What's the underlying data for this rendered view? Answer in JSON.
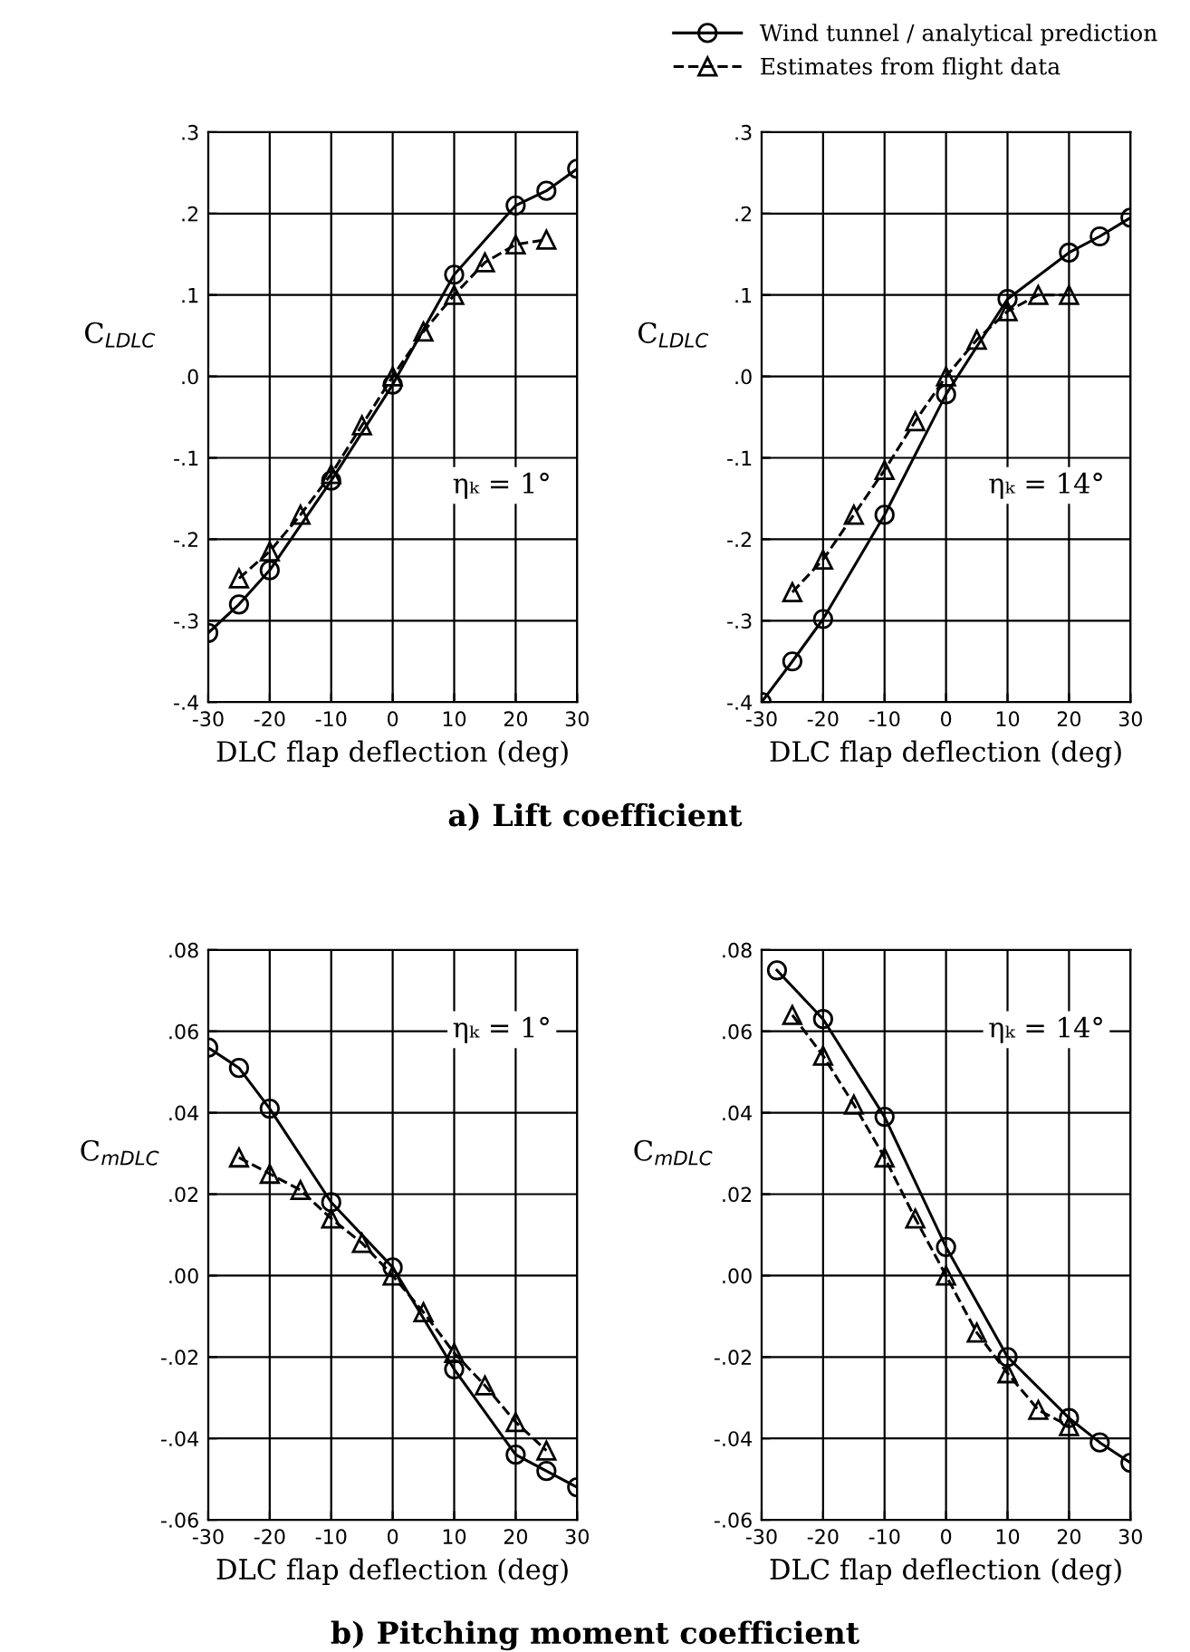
{
  "chart_data": [
    {
      "type": "line",
      "ylabel": "C$_{LDLC}$",
      "xlabel": "DLC flap deflection (deg)",
      "legend": "top right",
      "grid": true,
      "annotations": [
        "ηₖ = 1°",
        "a) Lift coefficient"
      ],
      "xlim": [
        -30,
        30
      ],
      "xticks": [
        -30,
        -20,
        -10,
        0,
        10,
        20,
        30
      ],
      "ylim": [
        -0.4,
        0.3
      ],
      "yticks": [
        {
          "value": -0.4,
          "label": "-.4"
        },
        {
          "value": -0.3,
          "label": "-.3"
        },
        {
          "value": -0.2,
          "label": "-.2"
        },
        {
          "value": -0.1,
          "label": "-.1"
        },
        {
          "value": 0,
          "label": ".0"
        },
        {
          "value": 0.1,
          "label": ".1"
        },
        {
          "value": 0.2,
          "label": ".2"
        },
        {
          "value": 0.3,
          "label": ".3"
        }
      ],
      "series": [
        {
          "name": "Wind tunnel / analytical prediction",
          "color": "#000000",
          "marker": "circle",
          "line_style": "solid",
          "x": [
            -30,
            -25,
            -20,
            -10,
            0,
            10,
            20,
            25,
            30
          ],
          "values": [
            -0.315,
            -0.28,
            -0.238,
            -0.128,
            -0.01,
            0.125,
            0.21,
            0.228,
            0.255
          ]
        },
        {
          "name": "Estimates from flight data",
          "color": "#000000",
          "marker": "triangle",
          "line_style": "dashed",
          "x": [
            -25,
            -20,
            -15,
            -10,
            -5,
            0,
            5,
            10,
            15,
            20,
            25
          ],
          "values": [
            -0.248,
            -0.215,
            -0.17,
            -0.12,
            -0.06,
            0.0,
            0.055,
            0.1,
            0.14,
            0.162,
            0.168
          ]
        }
      ]
    },
    {
      "type": "line",
      "ylabel": "C$_{LDLC}$",
      "xlabel": "DLC flap deflection (deg)",
      "grid": true,
      "annotations": [
        "ηₖ = 14°"
      ],
      "xlim": [
        -30,
        30
      ],
      "xticks": [
        -30,
        -20,
        -10,
        0,
        10,
        20,
        30
      ],
      "ylim": [
        -0.4,
        0.3
      ],
      "yticks": [
        {
          "value": -0.4,
          "label": "-.4"
        },
        {
          "value": -0.3,
          "label": "-.3"
        },
        {
          "value": -0.2,
          "label": "-.2"
        },
        {
          "value": -0.1,
          "label": "-.1"
        },
        {
          "value": 0,
          "label": ".0"
        },
        {
          "value": 0.1,
          "label": ".1"
        },
        {
          "value": 0.2,
          "label": ".2"
        },
        {
          "value": 0.3,
          "label": ".3"
        }
      ],
      "series": [
        {
          "color": "#000000",
          "marker": "circle",
          "line_style": "solid",
          "x": [
            -30,
            -25,
            -20,
            -10,
            0,
            10,
            20,
            25,
            30
          ],
          "values": [
            -0.4,
            -0.35,
            -0.298,
            -0.17,
            -0.022,
            0.095,
            0.152,
            0.172,
            0.195
          ]
        },
        {
          "color": "#000000",
          "marker": "triangle",
          "line_style": "dashed",
          "x": [
            -25,
            -20,
            -15,
            -10,
            -5,
            0,
            5,
            10,
            15,
            20
          ],
          "values": [
            -0.265,
            -0.225,
            -0.17,
            -0.115,
            -0.055,
            0.0,
            0.045,
            0.08,
            0.1,
            0.1
          ]
        }
      ]
    },
    {
      "type": "line",
      "ylabel": "C$_{mDLC}$",
      "xlabel": "DLC flap deflection (deg)",
      "grid": true,
      "annotations": [
        "ηₖ = 1°",
        "b) Pitching moment coefficient"
      ],
      "xlim": [
        -30,
        30
      ],
      "xticks": [
        -30,
        -20,
        -10,
        0,
        10,
        20,
        30
      ],
      "ylim": [
        -0.06,
        0.08
      ],
      "yticks": [
        {
          "value": -0.06,
          "label": "-.06"
        },
        {
          "value": -0.04,
          "label": "-.04"
        },
        {
          "value": -0.02,
          "label": "-.02"
        },
        {
          "value": 0,
          "label": ".00"
        },
        {
          "value": 0.02,
          "label": ".02"
        },
        {
          "value": 0.04,
          "label": ".04"
        },
        {
          "value": 0.06,
          "label": ".06"
        },
        {
          "value": 0.08,
          "label": ".08"
        }
      ],
      "series": [
        {
          "color": "#000000",
          "marker": "circle",
          "line_style": "solid",
          "x": [
            -30,
            -25,
            -20,
            -10,
            0,
            10,
            20,
            25,
            30
          ],
          "values": [
            0.056,
            0.051,
            0.041,
            0.018,
            0.002,
            -0.023,
            -0.044,
            -0.048,
            -0.052
          ]
        },
        {
          "color": "#000000",
          "marker": "triangle",
          "line_style": "dashed",
          "x": [
            -25,
            -20,
            -15,
            -10,
            -5,
            0,
            5,
            10,
            15,
            20,
            25
          ],
          "values": [
            0.029,
            0.025,
            0.021,
            0.014,
            0.008,
            0.0,
            -0.009,
            -0.019,
            -0.027,
            -0.036,
            -0.043
          ]
        }
      ]
    },
    {
      "type": "line",
      "ylabel": "C$_{mDLC}$",
      "xlabel": "DLC flap deflection (deg)",
      "grid": true,
      "annotations": [
        "ηₖ = 14°"
      ],
      "xlim": [
        -30,
        30
      ],
      "xticks": [
        -30,
        -20,
        -10,
        0,
        10,
        20,
        30
      ],
      "ylim": [
        -0.06,
        0.08
      ],
      "yticks": [
        {
          "value": -0.06,
          "label": "-.06"
        },
        {
          "value": -0.04,
          "label": "-.04"
        },
        {
          "value": -0.02,
          "label": "-.02"
        },
        {
          "value": 0,
          "label": ".00"
        },
        {
          "value": 0.02,
          "label": ".02"
        },
        {
          "value": 0.04,
          "label": ".04"
        },
        {
          "value": 0.06,
          "label": ".06"
        },
        {
          "value": 0.08,
          "label": ".08"
        }
      ],
      "series": [
        {
          "color": "#000000",
          "marker": "circle",
          "line_style": "solid",
          "x": [
            -27.5,
            -20,
            -10,
            0,
            10,
            20,
            25,
            30
          ],
          "values": [
            0.075,
            0.063,
            0.039,
            0.007,
            -0.02,
            -0.035,
            -0.041,
            -0.046
          ]
        },
        {
          "color": "#000000",
          "marker": "triangle",
          "line_style": "dashed",
          "x": [
            -25,
            -20,
            -15,
            -10,
            -5,
            0,
            5,
            10,
            15,
            20
          ],
          "values": [
            0.064,
            0.054,
            0.042,
            0.029,
            0.014,
            0.0,
            -0.014,
            -0.024,
            -0.033,
            -0.037
          ]
        }
      ]
    }
  ]
}
